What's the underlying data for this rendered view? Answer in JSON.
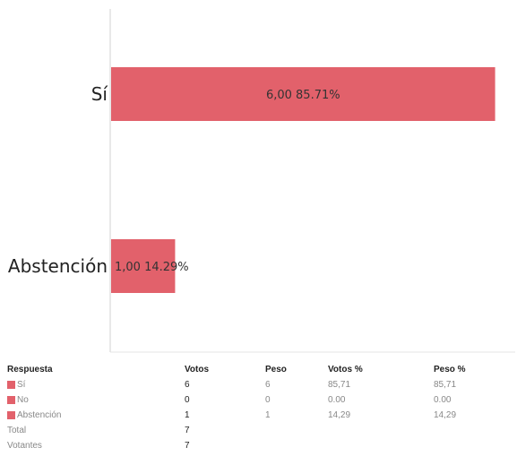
{
  "chart_data": {
    "type": "bar",
    "orientation": "horizontal",
    "categories": [
      "Sí",
      "Abstención"
    ],
    "values": [
      6,
      1
    ],
    "data_labels": [
      "6,00 85.71%",
      "1,00 14.29%"
    ],
    "xlim": [
      0,
      6.3
    ],
    "grid": false,
    "bar_color": "#e2616b"
  },
  "table": {
    "headers": [
      "Respuesta",
      "Votos",
      "Peso",
      "Votos %",
      "Peso %"
    ],
    "rows": [
      {
        "label": "Sí",
        "color": "#e2616b",
        "votos": "6",
        "peso": "6",
        "votos_pct": "85,71",
        "peso_pct": "85,71"
      },
      {
        "label": "No",
        "color": "#e2616b",
        "votos": "0",
        "peso": "0",
        "votos_pct": "0.00",
        "peso_pct": "0.00"
      },
      {
        "label": "Abstención",
        "color": "#e2616b",
        "votos": "1",
        "peso": "1",
        "votos_pct": "14,29",
        "peso_pct": "14,29"
      }
    ],
    "total": {
      "label": "Total",
      "votos": "7"
    },
    "votantes": {
      "label": "Votantes",
      "votos": "7"
    }
  }
}
